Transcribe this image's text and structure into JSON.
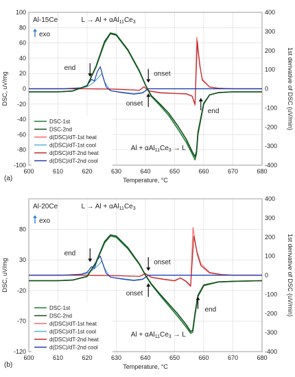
{
  "chart_data": [
    {
      "type": "line",
      "panel_label": "(a)",
      "sample_label": "Al-15Ce",
      "exo_label": "exo",
      "xlabel": "Temperature, °C",
      "ylabel": "DSC, uV/mg",
      "y2label": "1st derivative of DSC (uV/min)",
      "xlim": [
        600,
        680
      ],
      "ylim": [
        -100,
        100
      ],
      "y2lim": [
        -400,
        400
      ],
      "xticks": [
        "600",
        "610",
        "620",
        "630",
        "640",
        "650",
        "660",
        "670",
        "680"
      ],
      "yticks": [
        "-100",
        "-80",
        "-60",
        "-40",
        "-20",
        "0",
        "20",
        "40",
        "60",
        "80",
        "100"
      ],
      "y2ticks": [
        "-400",
        "-300",
        "-200",
        "-100",
        "0",
        "100",
        "200",
        "300",
        "400"
      ],
      "grid": true,
      "legend": "bottom-left",
      "annotations": {
        "top_reaction": "L → Al + αAl11Ce3",
        "bottom_reaction": "Al + αAl11Ce3 → L",
        "end_left": "end",
        "onset_top": "onset",
        "onset_bottom": "onset",
        "end_right": "end"
      },
      "series": [
        {
          "name": "DSC-1st",
          "color": "#1e7d32",
          "axis": "left",
          "x": [
            600,
            610,
            615,
            620,
            623,
            626,
            628,
            630,
            634,
            638,
            640,
            642,
            645,
            648,
            651,
            654,
            656,
            657,
            657.5,
            658,
            660,
            662,
            665,
            670,
            680
          ],
          "y": [
            -4,
            -4,
            -3,
            4,
            28,
            60,
            72,
            70,
            50,
            22,
            5,
            -10,
            -22,
            -35,
            -52,
            -70,
            -85,
            -93,
            -85,
            -60,
            -20,
            -8,
            -5,
            -4,
            -4
          ]
        },
        {
          "name": "DSC-2nd",
          "color": "#144d1c",
          "axis": "left",
          "x": [
            600,
            610,
            615,
            620,
            623,
            626,
            628,
            630,
            634,
            638,
            640,
            642,
            645,
            648,
            651,
            654,
            656,
            657,
            657.5,
            658,
            660,
            662,
            665,
            670,
            680
          ],
          "y": [
            -4,
            -4,
            -3,
            4,
            29,
            62,
            73,
            71,
            51,
            23,
            5,
            -9,
            -20,
            -32,
            -48,
            -66,
            -82,
            -89,
            -82,
            -57,
            -19,
            -8,
            -5,
            -4,
            -4
          ]
        },
        {
          "name": "d(DSC)/dT-1st heat",
          "color": "#f26b6b",
          "axis": "right",
          "x": [
            600,
            620,
            630,
            638,
            639.5,
            641,
            645,
            650,
            654,
            656,
            657,
            657.6,
            658,
            658.6,
            659.5,
            662,
            665,
            670,
            680
          ],
          "y": [
            0,
            0,
            -2,
            -8,
            12,
            -12,
            -22,
            -25,
            -28,
            -40,
            -88,
            270,
            200,
            120,
            50,
            10,
            3,
            0,
            0
          ]
        },
        {
          "name": "d(DSC)/dT-1st cool",
          "color": "#5aaee0",
          "axis": "right",
          "x": [
            600,
            612,
            618,
            620,
            622,
            624,
            625,
            626,
            628,
            632,
            636,
            639,
            641,
            645,
            650,
            680
          ],
          "y": [
            0,
            0,
            4,
            10,
            30,
            60,
            80,
            35,
            -10,
            -18,
            -25,
            -20,
            0,
            0,
            0,
            0
          ]
        },
        {
          "name": "d(DSC)/dT-2nd heat",
          "color": "#c0282a",
          "axis": "right",
          "x": [
            600,
            620,
            630,
            638,
            639.5,
            641,
            645,
            650,
            654,
            656,
            657,
            657.8,
            658.2,
            658.8,
            659.5,
            662,
            665,
            670,
            680
          ],
          "y": [
            0,
            0,
            -2,
            -8,
            10,
            -10,
            -20,
            -24,
            -26,
            -38,
            -80,
            250,
            185,
            110,
            45,
            9,
            3,
            0,
            0
          ]
        },
        {
          "name": "d(DSC)/dT-2nd cool",
          "color": "#1f3bb0",
          "axis": "right",
          "x": [
            600,
            612,
            618,
            620,
            621.5,
            622.5,
            623.5,
            624.5,
            625.5,
            626.5,
            628,
            632,
            636,
            639,
            641,
            645,
            650,
            680
          ],
          "y": [
            0,
            0,
            5,
            18,
            50,
            40,
            90,
            115,
            60,
            10,
            -10,
            -20,
            -28,
            -22,
            0,
            0,
            0,
            0
          ]
        }
      ]
    },
    {
      "type": "line",
      "panel_label": "(b)",
      "sample_label": "Al-20Ce",
      "exo_label": "exo",
      "xlabel": "Temperature, °C",
      "ylabel": "DSC, uV/mg",
      "y2label": "1st derivative of DSC (uV/min)",
      "xlim": [
        600,
        680
      ],
      "ylim": [
        -120,
        130
      ],
      "y2lim": [
        -400,
        400
      ],
      "xticks": [
        "600",
        "610",
        "620",
        "630",
        "640",
        "650",
        "660",
        "670",
        "680"
      ],
      "yticks": [
        "-120",
        "-70",
        "-20",
        "30",
        "80"
      ],
      "y2ticks": [
        "-400",
        "-300",
        "-200",
        "-100",
        "0",
        "100",
        "200",
        "300",
        "400"
      ],
      "grid": true,
      "legend": "bottom-left",
      "annotations": {
        "top_reaction": "L → Al + αAl11Ce3",
        "bottom_reaction": "Al + αAl11Ce3 → L",
        "end_left": "end",
        "onset_top": "onset",
        "onset_bottom": "onset",
        "end_right": "end"
      },
      "series": [
        {
          "name": "DSC-1st",
          "color": "#1e7d32",
          "axis": "left",
          "x": [
            600,
            610,
            615,
            620,
            623,
            626,
            628,
            630,
            634,
            638,
            640,
            642,
            645,
            648,
            651,
            654,
            655.5,
            656.2,
            657,
            658,
            660,
            665,
            670,
            680
          ],
          "y": [
            -4,
            -4,
            -3,
            3,
            25,
            58,
            69,
            67,
            48,
            22,
            5,
            -10,
            -28,
            -45,
            -62,
            -80,
            -90,
            -88,
            -60,
            -30,
            -12,
            -6,
            -5,
            -4
          ]
        },
        {
          "name": "DSC-2nd",
          "color": "#144d1c",
          "axis": "left",
          "x": [
            600,
            610,
            615,
            620,
            623,
            626,
            628,
            630,
            634,
            638,
            640,
            642,
            645,
            648,
            651,
            654,
            655.5,
            656.2,
            657,
            658,
            660,
            665,
            670,
            680
          ],
          "y": [
            -4,
            -4,
            -3,
            3,
            26,
            60,
            71,
            69,
            50,
            23,
            5,
            -9,
            -26,
            -42,
            -58,
            -76,
            -87,
            -85,
            -57,
            -28,
            -11,
            -6,
            -5,
            -4
          ]
        },
        {
          "name": "d(DSC)/dT-1st heat",
          "color": "#f26b6b",
          "axis": "right",
          "x": [
            600,
            620,
            630,
            638,
            640,
            642,
            646,
            650,
            652,
            654,
            655.5,
            656.3,
            656.8,
            657.6,
            659,
            662,
            666,
            670,
            680
          ],
          "y": [
            0,
            0,
            -2,
            -6,
            10,
            -12,
            -22,
            -30,
            -15,
            -35,
            -60,
            250,
            200,
            130,
            60,
            15,
            4,
            0,
            0
          ]
        },
        {
          "name": "d(DSC)/dT-1st cool",
          "color": "#5aaee0",
          "axis": "right",
          "x": [
            600,
            612,
            618,
            620,
            622,
            624,
            625,
            626,
            628,
            632,
            636,
            639,
            641,
            645,
            650,
            680
          ],
          "y": [
            0,
            0,
            4,
            10,
            28,
            55,
            75,
            35,
            -10,
            -18,
            -25,
            -20,
            0,
            0,
            0,
            0
          ]
        },
        {
          "name": "d(DSC)/dT-2nd heat",
          "color": "#c0282a",
          "axis": "right",
          "x": [
            600,
            620,
            630,
            638,
            640,
            642,
            646,
            650,
            652,
            654,
            655.5,
            656.6,
            657.1,
            657.8,
            659,
            662,
            666,
            670,
            680
          ],
          "y": [
            0,
            0,
            -2,
            -6,
            8,
            -10,
            -20,
            -28,
            -14,
            -32,
            -55,
            205,
            165,
            110,
            50,
            12,
            3,
            0,
            0
          ]
        },
        {
          "name": "d(DSC)/dT-2nd cool",
          "color": "#1f3bb0",
          "axis": "right",
          "x": [
            600,
            612,
            618,
            620,
            621.5,
            622.5,
            623.5,
            624.5,
            625.5,
            626.5,
            628,
            632,
            636,
            639,
            641,
            645,
            650,
            680
          ],
          "y": [
            0,
            0,
            5,
            15,
            45,
            35,
            80,
            100,
            55,
            10,
            -10,
            -20,
            -28,
            -22,
            0,
            0,
            0,
            0
          ]
        }
      ]
    }
  ]
}
